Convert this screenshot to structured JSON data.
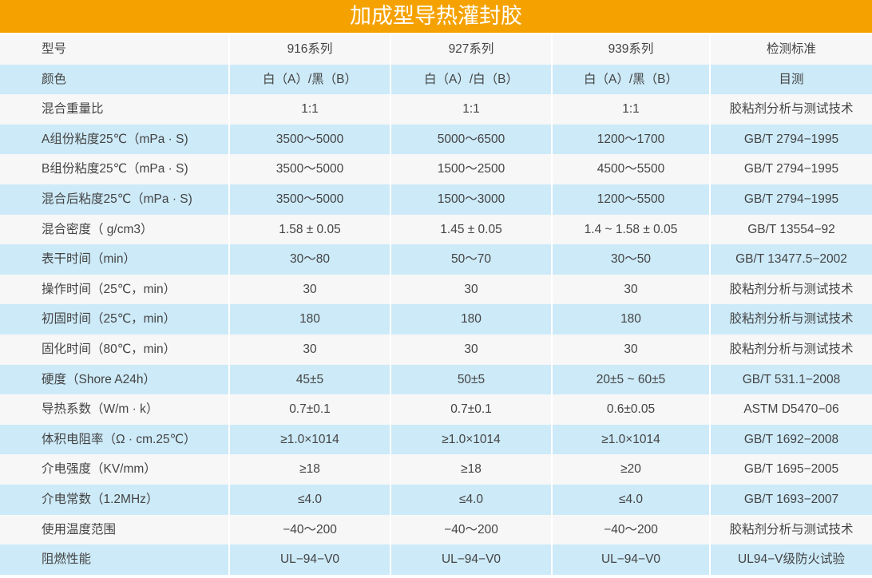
{
  "title": "加成型导热灌封胶",
  "colors": {
    "header_bg": "#f5a200",
    "row_light": "#f7f7f7",
    "row_blue": "#cdeaf8",
    "text": "#444444"
  },
  "rows": [
    [
      "型号",
      "916系列",
      "927系列",
      "939系列",
      "检测标准"
    ],
    [
      "颜色",
      "白（A）/黑（B）",
      "白（A）/白（B）",
      "白（A）/黑（B）",
      "目测"
    ],
    [
      "混合重量比",
      "1:1",
      "1:1",
      "1:1",
      "胶粘剂分析与测试技术"
    ],
    [
      "A组份粘度25℃（mPa · S)",
      "3500～5000",
      "5000～6500",
      "1200～1700",
      "GB/T 2794−1995"
    ],
    [
      "B组份粘度25℃（mPa · S)",
      "3500～5000",
      "1500～2500",
      "4500～5500",
      "GB/T 2794−1995"
    ],
    [
      "混合后粘度25℃（mPa · S)",
      "3500～5000",
      "1500～3000",
      "1200～5500",
      "GB/T 2794−1995"
    ],
    [
      "混合密度（ g/cm3）",
      "1.58 ± 0.05",
      "1.45 ± 0.05",
      "1.4 ~ 1.58 ± 0.05",
      "GB/T 13554−92"
    ],
    [
      "表干时间（min）",
      "30～80",
      "50～70",
      "30～50",
      "GB/T 13477.5−2002"
    ],
    [
      "操作时间（25℃，min）",
      "30",
      "30",
      "30",
      "胶粘剂分析与测试技术"
    ],
    [
      "初固时间（25℃，min）",
      "180",
      "180",
      "180",
      "胶粘剂分析与测试技术"
    ],
    [
      "固化时间（80℃，min）",
      "30",
      "30",
      "30",
      "胶粘剂分析与测试技术"
    ],
    [
      "硬度（Shore A24h）",
      "45±5",
      "50±5",
      "20±5 ~ 60±5",
      "GB/T 531.1−2008"
    ],
    [
      "导热系数（W/m · k）",
      "0.7±0.1",
      "0.7±0.1",
      "0.6±0.05",
      "ASTM D5470−06"
    ],
    [
      "体积电阻率（Ω · cm.25℃）",
      "≥1.0×1014",
      "≥1.0×1014",
      "≥1.0×1014",
      "GB/T 1692−2008"
    ],
    [
      "介电强度（KV/mm）",
      "≥18",
      "≥18",
      "≥20",
      "GB/T 1695−2005"
    ],
    [
      "介电常数（1.2MHz）",
      "≤4.0",
      "≤4.0",
      "≤4.0",
      "GB/T 1693−2007"
    ],
    [
      "使用温度范围",
      "−40～200",
      "−40～200",
      "−40～200",
      "胶粘剂分析与测试技术"
    ],
    [
      "阻燃性能",
      "UL−94−V0",
      "UL−94−V0",
      "UL−94−V0",
      "UL94−V级防火试验"
    ]
  ]
}
